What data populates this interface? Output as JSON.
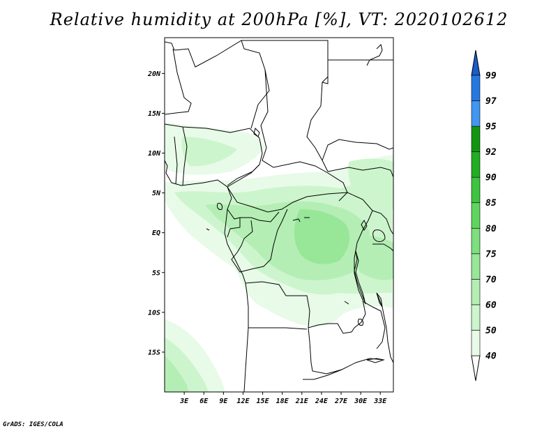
{
  "title": "Relative humidity at 200hPa [%], VT: 2020102612",
  "credit": "GrADS: IGES/COLA",
  "map": {
    "lon_range": [
      0,
      35
    ],
    "lat_range": [
      -20,
      24.5
    ],
    "lon_ticks": [
      {
        "value": 3,
        "label": "3E"
      },
      {
        "value": 6,
        "label": "6E"
      },
      {
        "value": 9,
        "label": "9E"
      },
      {
        "value": 12,
        "label": "12E"
      },
      {
        "value": 15,
        "label": "15E"
      },
      {
        "value": 18,
        "label": "18E"
      },
      {
        "value": 21,
        "label": "21E"
      },
      {
        "value": 24,
        "label": "24E"
      },
      {
        "value": 27,
        "label": "27E"
      },
      {
        "value": 30,
        "label": "30E"
      },
      {
        "value": 33,
        "label": "33E"
      }
    ],
    "lat_ticks": [
      {
        "value": 20,
        "label": "20N"
      },
      {
        "value": 15,
        "label": "15N"
      },
      {
        "value": 10,
        "label": "10N"
      },
      {
        "value": 5,
        "label": "5N"
      },
      {
        "value": 0,
        "label": "EQ"
      },
      {
        "value": -5,
        "label": "5S"
      },
      {
        "value": -10,
        "label": "10S"
      },
      {
        "value": -15,
        "label": "15S"
      }
    ]
  },
  "colorbar": {
    "levels": [
      "40",
      "50",
      "60",
      "70",
      "75",
      "80",
      "85",
      "90",
      "92",
      "95",
      "97",
      "99"
    ],
    "colors": [
      "#e8fae8",
      "#cdf5cd",
      "#b4eeb4",
      "#98e698",
      "#7ddf7d",
      "#5fd45f",
      "#3ec43e",
      "#22ad22",
      "#129612",
      "#4196f0",
      "#2678e0",
      "#1a5cc8"
    ],
    "below_color": "#ffffff",
    "above_color": "#1a5cc8"
  }
}
